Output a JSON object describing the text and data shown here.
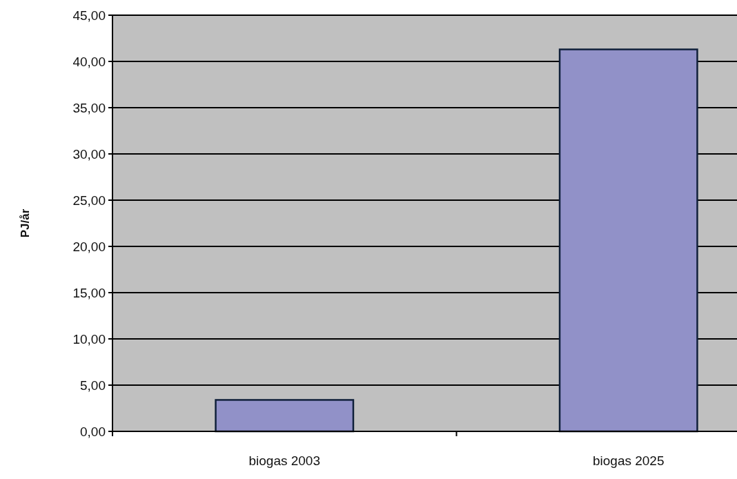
{
  "chart_data": {
    "type": "bar",
    "ylabel": "PJ/år",
    "categories": [
      "biogas 2003",
      "biogas 2025"
    ],
    "values": [
      3.4,
      41.3
    ],
    "color": "#9191c8",
    "ylim": [
      0,
      45
    ],
    "yticks": [
      {
        "value": 0,
        "label": "0,00"
      },
      {
        "value": 5,
        "label": "5,00"
      },
      {
        "value": 10,
        "label": "10,00"
      },
      {
        "value": 15,
        "label": "15,00"
      },
      {
        "value": 20,
        "label": "20,00"
      },
      {
        "value": 25,
        "label": "25,00"
      },
      {
        "value": 30,
        "label": "30,00"
      },
      {
        "value": 35,
        "label": "35,00"
      },
      {
        "value": 40,
        "label": "40,00"
      },
      {
        "value": 45,
        "label": "45,00"
      }
    ],
    "grid": "y"
  }
}
